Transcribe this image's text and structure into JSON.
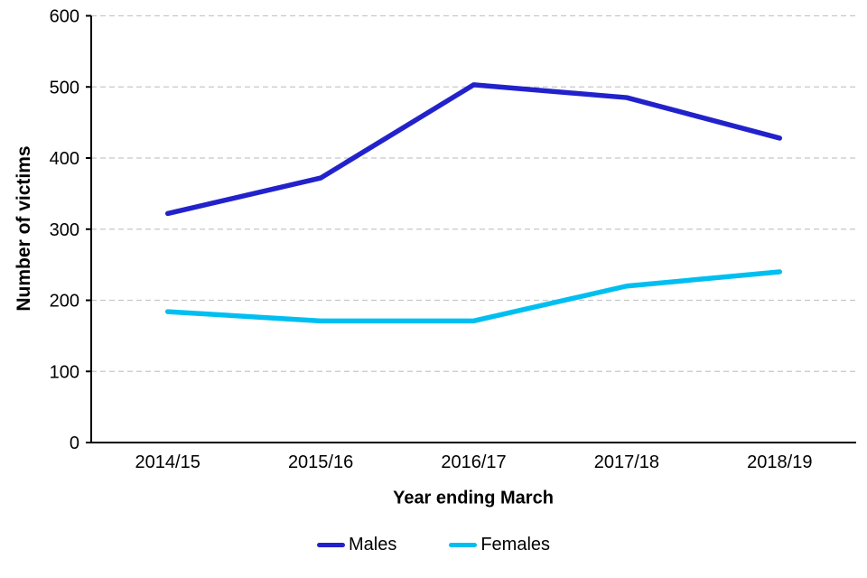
{
  "chart_data": {
    "type": "line",
    "title": "",
    "xlabel": "Year ending March",
    "ylabel": "Number of victims",
    "categories": [
      "2014/15",
      "2015/16",
      "2016/17",
      "2017/18",
      "2018/19"
    ],
    "series": [
      {
        "name": "Males",
        "color": "#2222CC",
        "values": [
          322,
          372,
          503,
          485,
          428
        ]
      },
      {
        "name": "Females",
        "color": "#00BFF0",
        "values": [
          184,
          171,
          171,
          220,
          240
        ]
      }
    ],
    "ylim": [
      0,
      600
    ],
    "yticks": [
      0,
      100,
      200,
      300,
      400,
      500,
      600
    ],
    "grid": "horizontal-dashed",
    "gridline_color": "#c8c8c8",
    "axis_color": "#000000",
    "legend_position": "bottom"
  }
}
